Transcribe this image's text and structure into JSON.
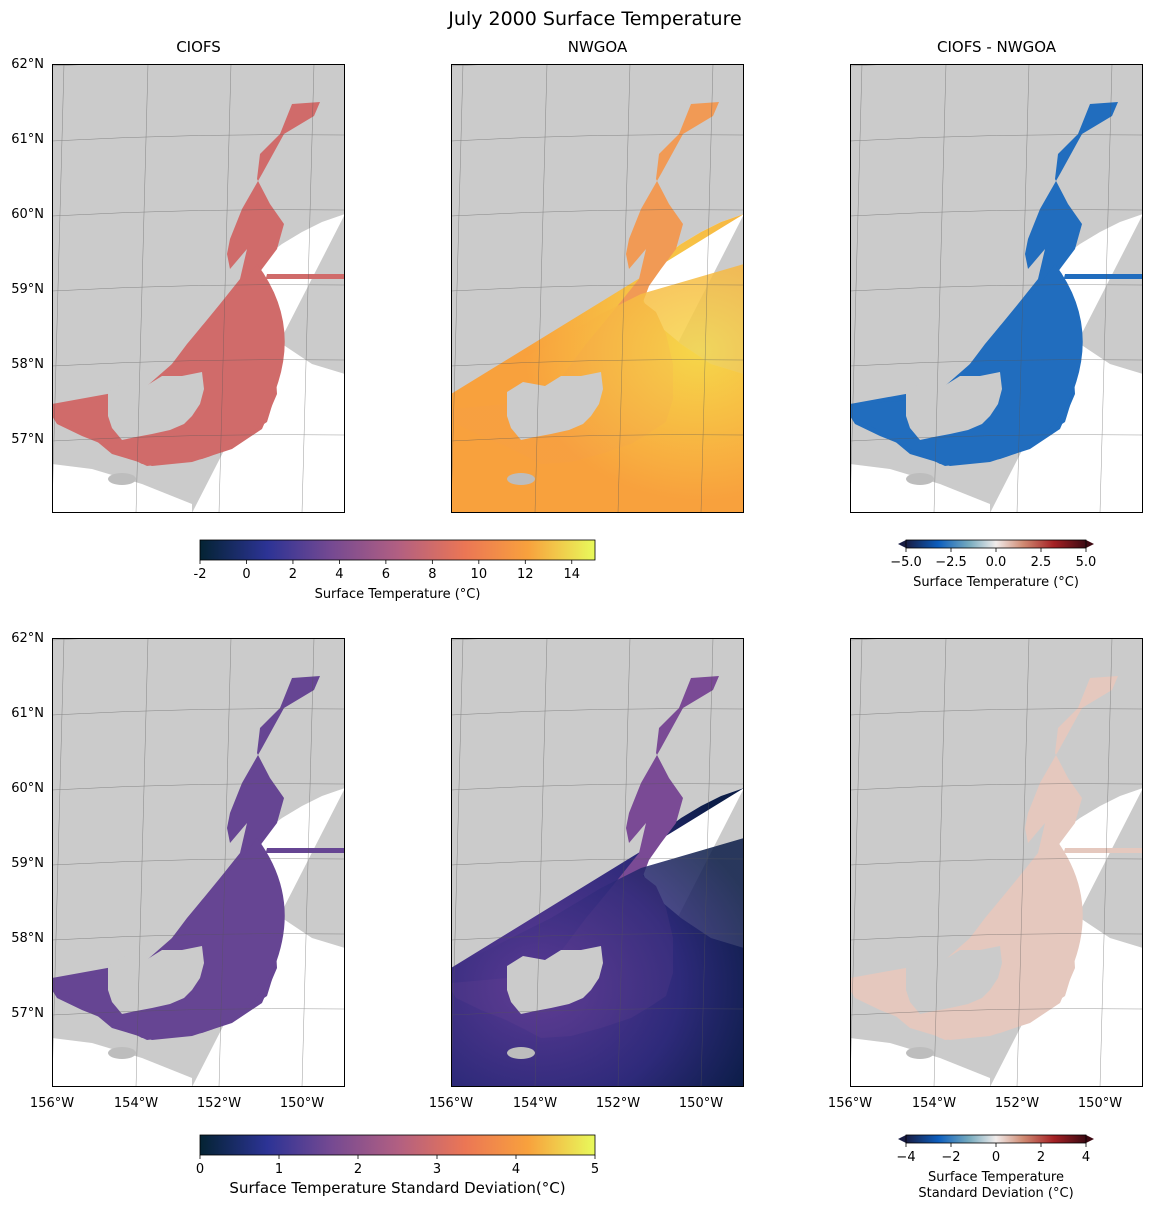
{
  "figure": {
    "title": "July 2000 Surface Temperature"
  },
  "chart_data": [
    {
      "type": "heatmap",
      "panel": "top-left",
      "title": "CIOFS",
      "variable": "Surface Temperature (°C)",
      "colormap": "thermal",
      "clim": [
        -2,
        15
      ],
      "typical_value": 8,
      "lat_ticks": [
        "62°N",
        "61°N",
        "60°N",
        "59°N",
        "58°N",
        "57°N"
      ],
      "lon_ticks": []
    },
    {
      "type": "heatmap",
      "panel": "top-middle",
      "title": "NWGOA",
      "variable": "Surface Temperature (°C)",
      "colormap": "thermal",
      "clim": [
        -2,
        15
      ],
      "typical_value": 12,
      "lat_ticks": [],
      "lon_ticks": []
    },
    {
      "type": "heatmap",
      "panel": "top-right",
      "title": "CIOFS - NWGOA",
      "variable": "Surface Temperature (°C)",
      "colormap": "balance",
      "clim": [
        -5,
        5
      ],
      "typical_value": -3,
      "lat_ticks": [],
      "lon_ticks": []
    },
    {
      "type": "heatmap",
      "panel": "bottom-left",
      "title": "",
      "variable": "Surface Temperature Standard Deviation(°C)",
      "colormap": "thermal",
      "clim": [
        0,
        5
      ],
      "typical_value": 1.5,
      "lat_ticks": [
        "62°N",
        "61°N",
        "60°N",
        "59°N",
        "58°N",
        "57°N"
      ],
      "lon_ticks": [
        "156°W",
        "154°W",
        "152°W",
        "150°W"
      ]
    },
    {
      "type": "heatmap",
      "panel": "bottom-middle",
      "title": "",
      "variable": "Surface Temperature Standard Deviation(°C)",
      "colormap": "thermal",
      "clim": [
        0,
        5
      ],
      "typical_value": 1.0,
      "lat_ticks": [],
      "lon_ticks": [
        "156°W",
        "154°W",
        "152°W",
        "150°W"
      ]
    },
    {
      "type": "heatmap",
      "panel": "bottom-right",
      "title": "",
      "variable": "Surface Temperature Standard Deviation (°C)",
      "colormap": "balance",
      "clim": [
        -4,
        4
      ],
      "typical_value": 0.5,
      "lat_ticks": [],
      "lon_ticks": [
        "156°W",
        "154°W",
        "152°W",
        "150°W"
      ]
    }
  ],
  "colorbars": {
    "temp": {
      "label": "Surface Temperature (°C)",
      "ticks": [
        "-2",
        "0",
        "2",
        "4",
        "6",
        "8",
        "10",
        "12",
        "14"
      ],
      "tick_values": [
        -2,
        0,
        2,
        4,
        6,
        8,
        10,
        12,
        14
      ],
      "range": [
        -2,
        15
      ]
    },
    "temp_diff": {
      "label": "Surface Temperature (°C)",
      "ticks": [
        "−5.0",
        "−2.5",
        "0.0",
        "2.5",
        "5.0"
      ],
      "tick_values": [
        -5,
        -2.5,
        0,
        2.5,
        5
      ],
      "range": [
        -5,
        5
      ]
    },
    "sd": {
      "label": "Surface Temperature Standard Deviation(°C)",
      "ticks": [
        "0",
        "1",
        "2",
        "3",
        "4",
        "5"
      ],
      "tick_values": [
        0,
        1,
        2,
        3,
        4,
        5
      ],
      "range": [
        0,
        5
      ]
    },
    "sd_diff": {
      "label_line1": "Surface Temperature",
      "label_line2": "Standard Deviation (°C)",
      "ticks": [
        "−4",
        "−2",
        "0",
        "2",
        "4"
      ],
      "tick_values": [
        -4,
        -2,
        0,
        2,
        4
      ],
      "range": [
        -4,
        4
      ]
    }
  },
  "colors": {
    "land": "#cbcbcb",
    "thermal": [
      "#042333",
      "#2c3395",
      "#744992",
      "#b15f82",
      "#eb7655",
      "#f8a13d",
      "#e8fa5b"
    ],
    "balance": [
      "#181c43",
      "#0c5ebe",
      "#75aabe",
      "#f1eceb",
      "#d08b73",
      "#a52125",
      "#3c0912"
    ]
  }
}
